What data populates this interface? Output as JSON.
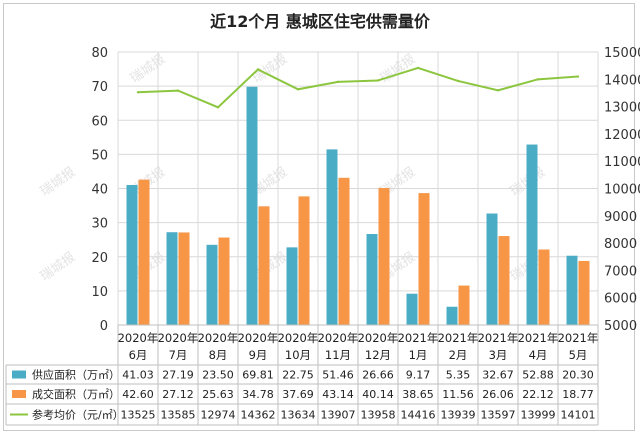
{
  "chart_data": {
    "type": "bar",
    "title": "近12个月 惠城区住宅供需量价",
    "categories": [
      [
        "2020年",
        "6月"
      ],
      [
        "2020年",
        "7月"
      ],
      [
        "2020年",
        "8月"
      ],
      [
        "2020年",
        "9月"
      ],
      [
        "2020年",
        "10月"
      ],
      [
        "2020年",
        "11月"
      ],
      [
        "2020年",
        "12月"
      ],
      [
        "2021年",
        "1月"
      ],
      [
        "2021年",
        "2月"
      ],
      [
        "2021年",
        "3月"
      ],
      [
        "2021年",
        "4月"
      ],
      [
        "2021年",
        "5月"
      ]
    ],
    "series": [
      {
        "name": "供应面积（万㎡）",
        "kind": "bar",
        "axis": "left",
        "color": "#4bacc6",
        "values": [
          41.03,
          27.19,
          23.5,
          69.81,
          22.75,
          51.46,
          26.66,
          9.17,
          5.35,
          32.67,
          52.88,
          20.3
        ],
        "labels": [
          "41.03",
          "27.19",
          "23.50",
          "69.81",
          "22.75",
          "51.46",
          "26.66",
          "9.17",
          "5.35",
          "32.67",
          "52.88",
          "20.30"
        ]
      },
      {
        "name": "成交面积（万㎡）",
        "kind": "bar",
        "axis": "left",
        "color": "#f79646",
        "values": [
          42.6,
          27.12,
          25.63,
          34.78,
          37.69,
          43.14,
          40.14,
          38.65,
          11.56,
          26.06,
          22.12,
          18.77
        ],
        "labels": [
          "42.60",
          "27.12",
          "25.63",
          "34.78",
          "37.69",
          "43.14",
          "40.14",
          "38.65",
          "11.56",
          "26.06",
          "22.12",
          "18.77"
        ]
      },
      {
        "name": "参考均价（元/㎡）",
        "kind": "line",
        "axis": "right",
        "color": "#8cc63f",
        "values": [
          13525,
          13585,
          12974,
          14362,
          13634,
          13907,
          13958,
          14416,
          13939,
          13597,
          13999,
          14101
        ],
        "labels": [
          "13525",
          "13585",
          "12974",
          "14362",
          "13634",
          "13907",
          "13958",
          "14416",
          "13939",
          "13597",
          "13999",
          "14101"
        ]
      }
    ],
    "y_left": {
      "ylim": [
        0,
        80
      ],
      "ticks": [
        "0",
        "10",
        "20",
        "30",
        "40",
        "50",
        "60",
        "70",
        "80"
      ]
    },
    "y_right": {
      "ylim": [
        5000,
        15000
      ],
      "ticks": [
        "5000",
        "6000",
        "7000",
        "8000",
        "9000",
        "10000",
        "11000",
        "12000",
        "13000",
        "14000",
        "15000"
      ]
    },
    "grid": true,
    "legend": "data-table-below"
  },
  "watermark": {
    "text": "瑞城报"
  }
}
